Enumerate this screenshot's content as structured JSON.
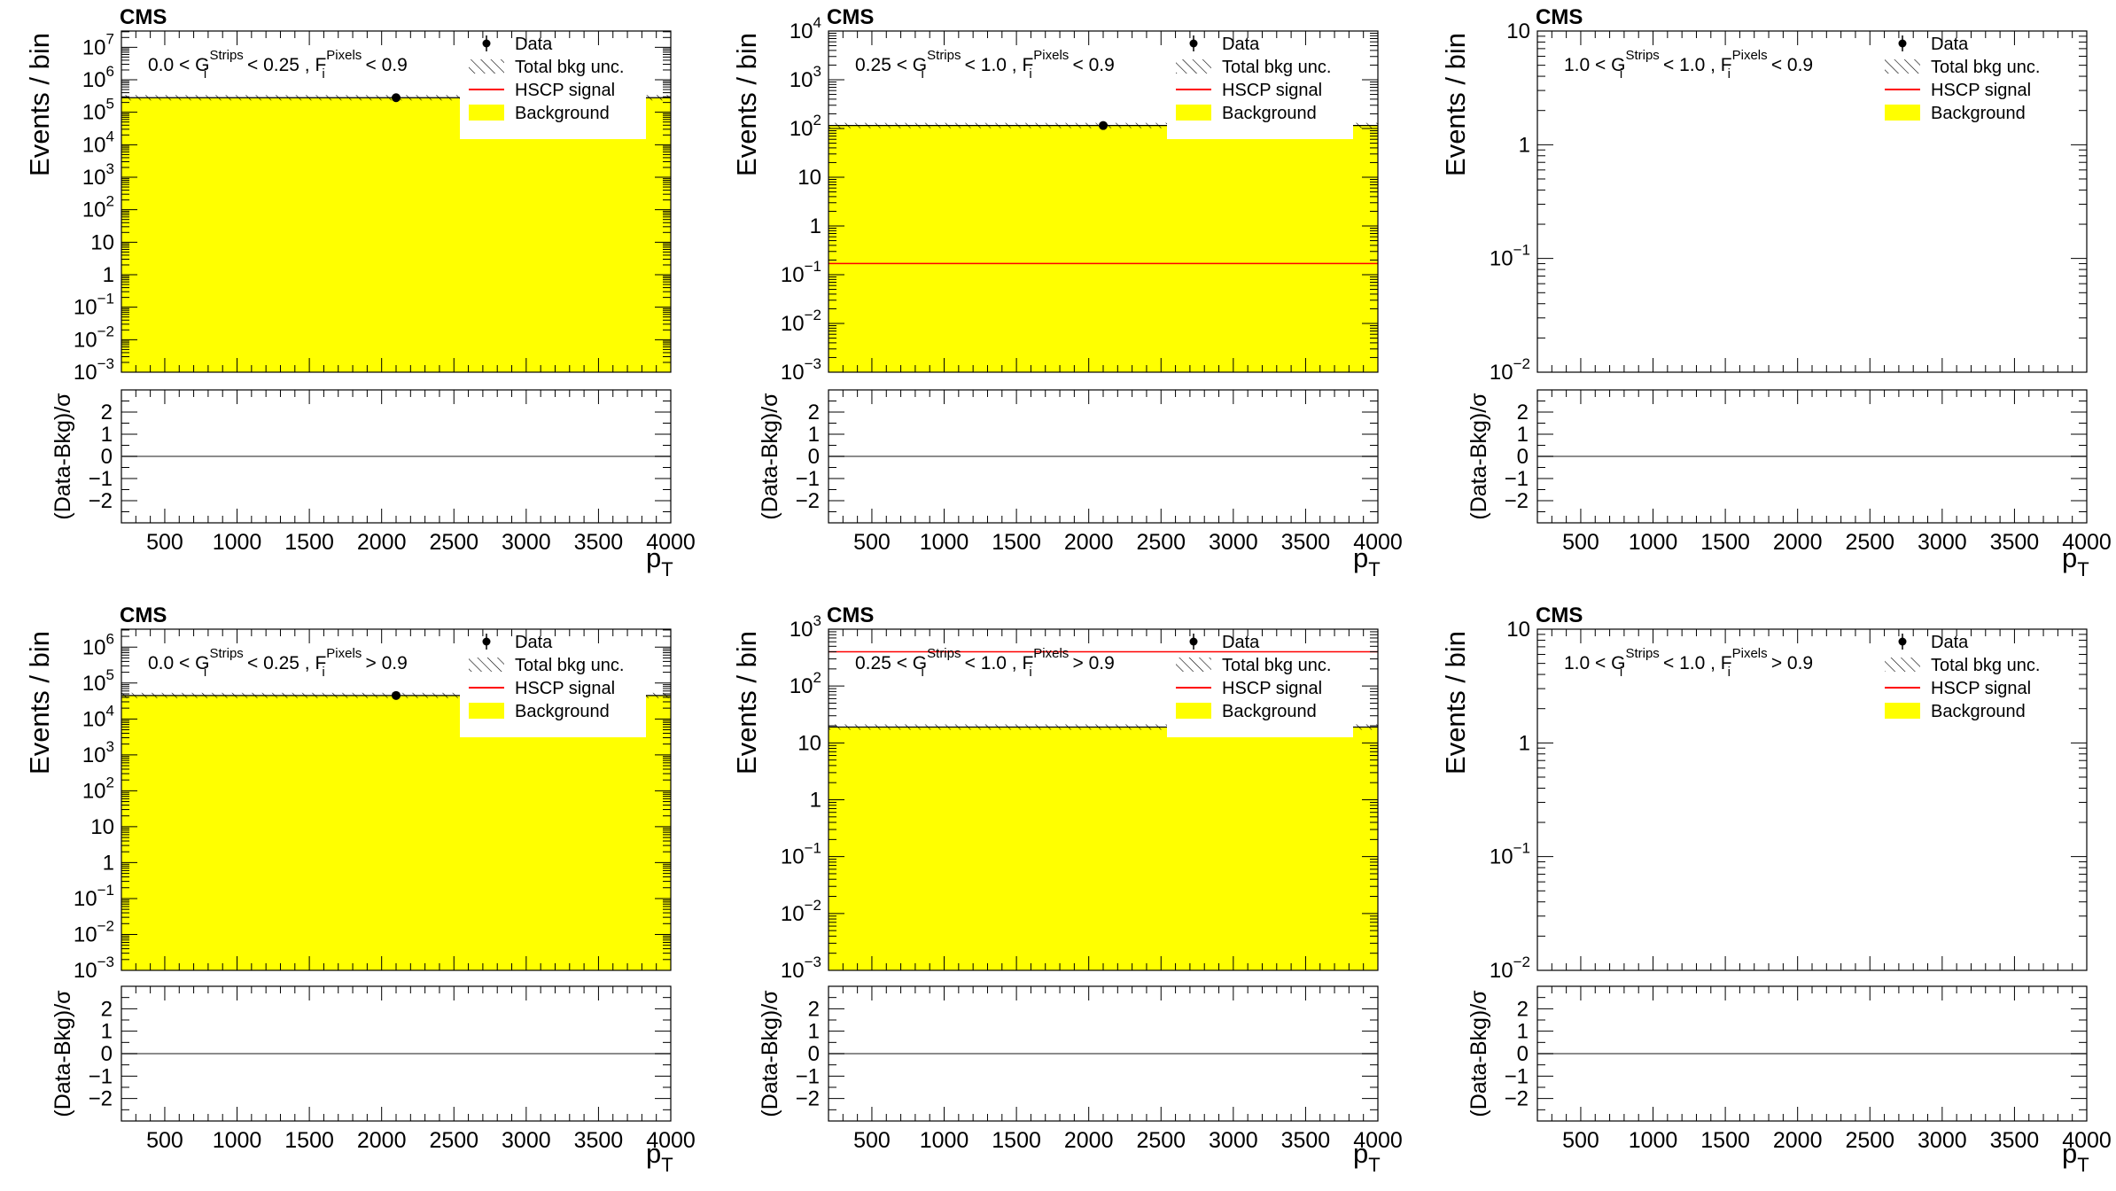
{
  "figure": {
    "experiment": "CMS",
    "x_title": "p",
    "x_title_sub": "T",
    "y_title_main": "Events / bin",
    "y_title_ratio": "(Data-Bkg)/σ",
    "x_ticks": [
      "500",
      "1000",
      "1500",
      "2000",
      "2500",
      "3000",
      "3500",
      "4000"
    ],
    "ratio_ticks": [
      "2",
      "1",
      "0",
      "−1",
      "−2"
    ],
    "legend": [
      "Data",
      "Total bkg unc.",
      "HSCP signal",
      "Background"
    ],
    "colors": {
      "background": "#ffff00",
      "signal": "#ff0000",
      "data": "#000000",
      "axis": "#000000"
    }
  },
  "chart_data": [
    {
      "type": "bar",
      "panel": "top-left",
      "label_parts": [
        "0.0 < G",
        "Strips",
        "i",
        " < 0.25 , F",
        "Pixels",
        "i",
        " < 0.9"
      ],
      "xlim": [
        200,
        4000
      ],
      "ylim_log10": [
        -3,
        7.5
      ],
      "y_labels": [
        "10^7",
        "10^6",
        "10^5",
        "10^4",
        "10^3",
        "10^2",
        "10",
        "1",
        "10^-1",
        "10^-2",
        "10^-3"
      ],
      "background": [
        {
          "x0": 200,
          "x1": 4000,
          "y": 280000
        }
      ],
      "signal": null,
      "data_points": [
        {
          "x": 2100,
          "y": 280000
        }
      ],
      "ratio": 0
    },
    {
      "type": "bar",
      "panel": "top-middle",
      "label_parts": [
        "0.25 < G",
        "Strips",
        "i",
        " < 1.0 , F",
        "Pixels",
        "i",
        " < 0.9"
      ],
      "xlim": [
        200,
        4000
      ],
      "ylim_log10": [
        -3,
        4
      ],
      "y_labels": [
        "10^4",
        "10^3",
        "10^2",
        "10",
        "1",
        "10^-1",
        "10^-2",
        "10^-3"
      ],
      "background": [
        {
          "x0": 200,
          "x1": 4000,
          "y": 115
        }
      ],
      "signal": 0.17,
      "data_points": [
        {
          "x": 2100,
          "y": 115
        }
      ],
      "ratio": 0
    },
    {
      "type": "bar",
      "panel": "top-right",
      "label_parts": [
        "1.0 < G",
        "Strips",
        "i",
        " < 1.0 , F",
        "Pixels",
        "i",
        " < 0.9"
      ],
      "xlim": [
        200,
        4000
      ],
      "ylim_log10": [
        -2,
        1
      ],
      "y_labels": [
        "10",
        "1",
        "10^-1",
        "10^-2"
      ],
      "background": [],
      "signal": null,
      "data_points": [],
      "ratio": 0
    },
    {
      "type": "bar",
      "panel": "bottom-left",
      "label_parts": [
        "0.0 < G",
        "Strips",
        "i",
        " < 0.25 , F",
        "Pixels",
        "i",
        " > 0.9"
      ],
      "xlim": [
        200,
        4000
      ],
      "ylim_log10": [
        -3,
        6.5
      ],
      "y_labels": [
        "10^6",
        "10^5",
        "10^4",
        "10^3",
        "10^2",
        "10",
        "1",
        "10^-1",
        "10^-2",
        "10^-3"
      ],
      "background": [
        {
          "x0": 200,
          "x1": 4000,
          "y": 45000
        }
      ],
      "signal": null,
      "data_points": [
        {
          "x": 2100,
          "y": 45000
        }
      ],
      "ratio": 0
    },
    {
      "type": "bar",
      "panel": "bottom-middle",
      "label_parts": [
        "0.25 < G",
        "Strips",
        "i",
        " < 1.0 , F",
        "Pixels",
        "i",
        " > 0.9"
      ],
      "xlim": [
        200,
        4000
      ],
      "ylim_log10": [
        -3,
        3
      ],
      "y_labels": [
        "10^3",
        "10^2",
        "10",
        "1",
        "10^-1",
        "10^-2",
        "10^-3"
      ],
      "background": [
        {
          "x0": 200,
          "x1": 4000,
          "y": 19
        }
      ],
      "signal": 400,
      "data_points": [],
      "ratio": 0
    },
    {
      "type": "bar",
      "panel": "bottom-right",
      "label_parts": [
        "1.0 < G",
        "Strips",
        "i",
        " < 1.0 , F",
        "Pixels",
        "i",
        " > 0.9"
      ],
      "xlim": [
        200,
        4000
      ],
      "ylim_log10": [
        -2,
        1
      ],
      "y_labels": [
        "10",
        "1",
        "10^-1",
        "10^-2"
      ],
      "background": [],
      "signal": null,
      "data_points": [],
      "ratio": 0
    }
  ]
}
